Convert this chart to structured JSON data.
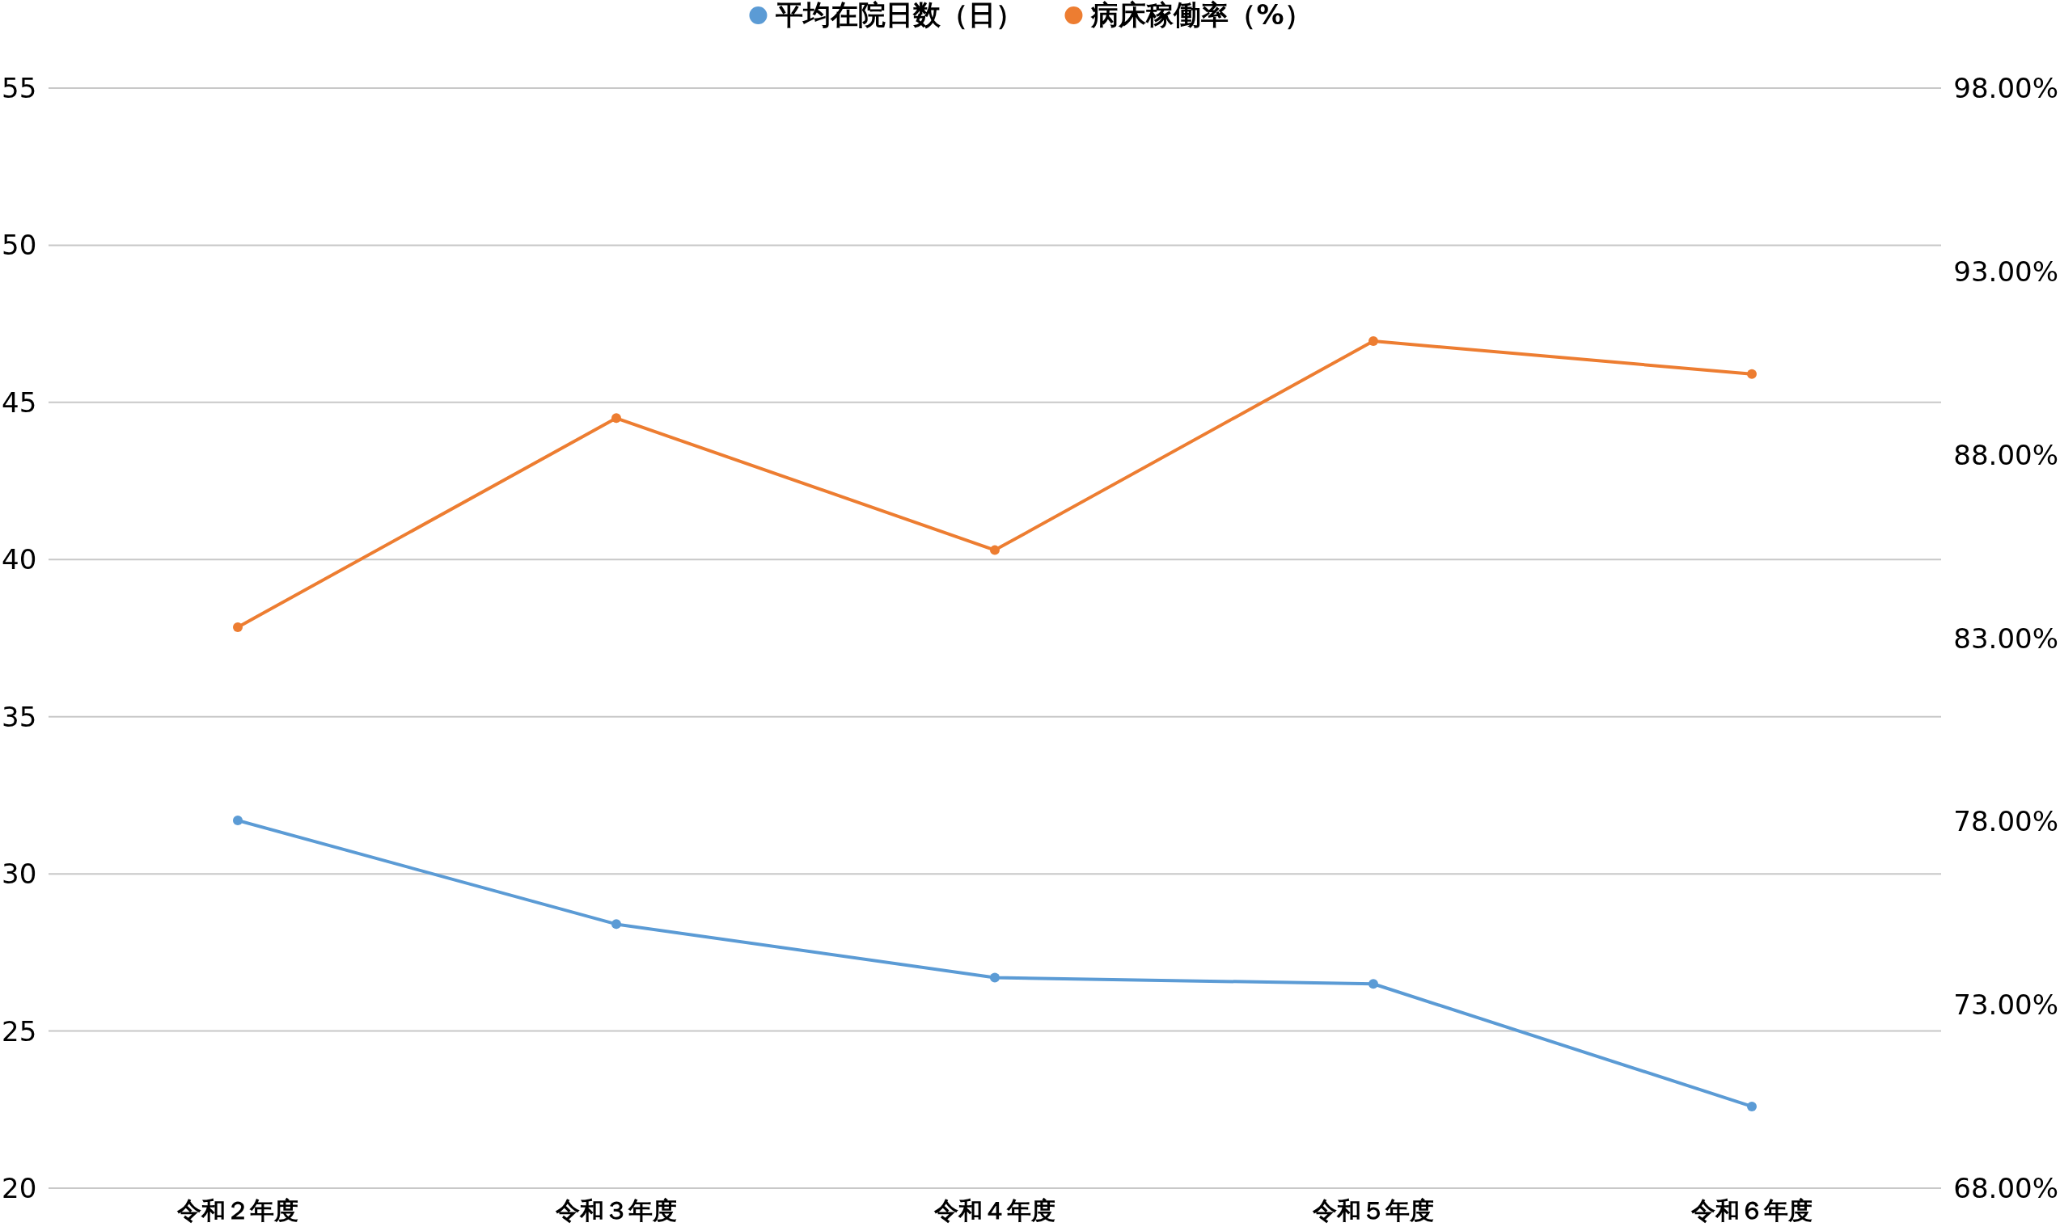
{
  "chart_data": {
    "type": "line",
    "categories": [
      "令和２年度",
      "令和３年度",
      "令和４年度",
      "令和５年度",
      "令和６年度"
    ],
    "series": [
      {
        "name": "平均在院日数（日）",
        "color": "#5b9bd5",
        "values": [
          31.7,
          28.4,
          26.7,
          26.5,
          22.6
        ]
      },
      {
        "name": "病床稼働率（%）",
        "color": "#ed7d31",
        "axis": "y2",
        "values": [
          83.3,
          89.0,
          85.4,
          91.1,
          90.2
        ]
      }
    ],
    "ylim": [
      20,
      55
    ],
    "yticks": [
      20,
      25,
      30,
      35,
      40,
      45,
      50,
      55
    ],
    "y2lim": [
      68,
      98
    ],
    "y2ticks": [
      {
        "value": 68,
        "label": "68.00%"
      },
      {
        "value": 73,
        "label": "73.00%"
      },
      {
        "value": 78,
        "label": "78.00%"
      },
      {
        "value": 83,
        "label": "83.00%"
      },
      {
        "value": 88,
        "label": "88.00%"
      },
      {
        "value": 93,
        "label": "93.00%"
      },
      {
        "value": 98,
        "label": "98.00%"
      }
    ],
    "grid": "y",
    "legend": "top",
    "marker": "circle"
  }
}
